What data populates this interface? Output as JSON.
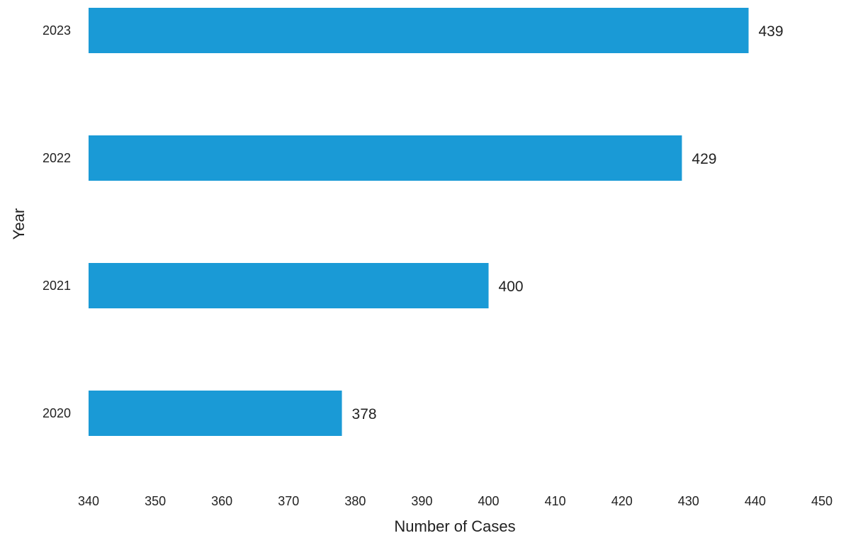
{
  "chart_data": {
    "type": "bar",
    "orientation": "horizontal",
    "categories": [
      "2023",
      "2022",
      "2021",
      "2020"
    ],
    "values": [
      439,
      429,
      400,
      378
    ],
    "data_labels": [
      "439",
      "429",
      "400",
      "378"
    ],
    "x_ticks": [
      340,
      350,
      360,
      370,
      380,
      390,
      400,
      410,
      420,
      430,
      440,
      450
    ],
    "x_tick_labels": [
      "340",
      "350",
      "360",
      "370",
      "380",
      "390",
      "400",
      "410",
      "420",
      "430",
      "440",
      "450"
    ],
    "xlim": [
      340,
      450
    ],
    "xlabel": "Number of Cases",
    "ylabel": "Year",
    "grid": false,
    "legend": "none",
    "bar_color": "#1a9ad6"
  }
}
